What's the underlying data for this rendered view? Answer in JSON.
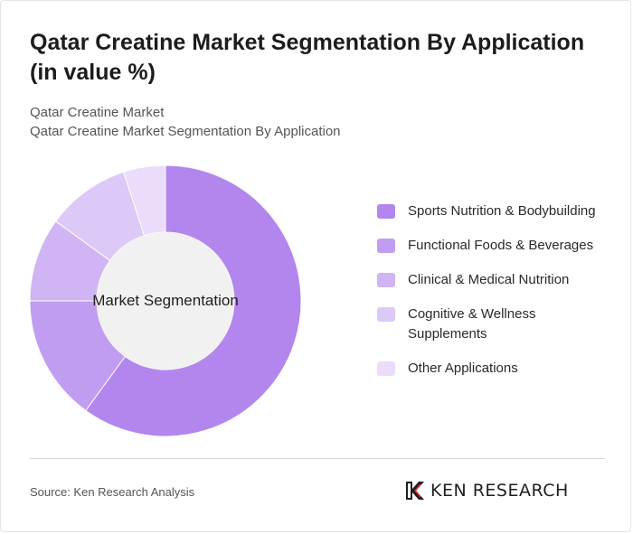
{
  "header": {
    "title": "Qatar Creatine Market Segmentation By Application (in value %)",
    "subtitle_line1": "Qatar Creatine Market",
    "subtitle_line2": "Qatar Creatine Market Segmentation By Application"
  },
  "chart_data": {
    "type": "pie",
    "variant": "donut",
    "center_label": "Market Segmentation",
    "categories": [
      "Sports Nutrition & Bodybuilding",
      "Functional Foods & Beverages",
      "Clinical & Medical Nutrition",
      "Cognitive & Wellness Supplements",
      "Other Applications"
    ],
    "values": [
      60,
      15,
      10,
      10,
      5
    ],
    "colors": [
      "#b386ee",
      "#c19df1",
      "#d0b4f4",
      "#ddc9f7",
      "#eadcfa"
    ],
    "legend_position": "right"
  },
  "footer": {
    "source": "Source: Ken Research Analysis",
    "logo_text": "KEN RESEARCH"
  }
}
